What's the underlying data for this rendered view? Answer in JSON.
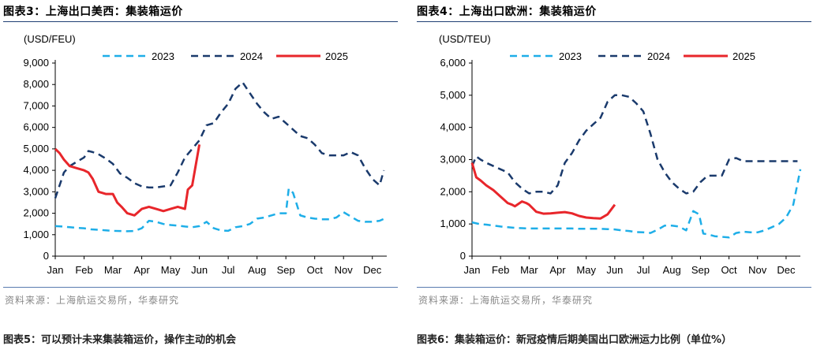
{
  "legend_labels": [
    "2023",
    "2024",
    "2025"
  ],
  "colors": {
    "y2023": "#1eaee8",
    "y2024": "#1a3a6c",
    "y2025": "#e8262b",
    "rule": "#1f3f73"
  },
  "panels": [
    {
      "title": "图表3：上海出口美西：集装箱运价",
      "source": "资料来源：上海航运交易所，华泰研究",
      "next_title": "图表5：可以预计未来集装箱运价，操作主动的机会",
      "chart_data": {
        "type": "line",
        "unit_label": "(USD/FEU)",
        "title": "上海出口美西：集装箱运价",
        "categories": [
          "Jan",
          "Feb",
          "Mar",
          "Apr",
          "May",
          "Jun",
          "Jul",
          "Aug",
          "Sep",
          "Oct",
          "Nov",
          "Dec"
        ],
        "ylim": [
          0,
          9000
        ],
        "yticks": [
          0,
          1000,
          2000,
          3000,
          4000,
          5000,
          6000,
          7000,
          8000,
          9000
        ],
        "ytick_labels": [
          "0",
          "1,000",
          "2,000",
          "3,000",
          "4,000",
          "5,000",
          "6,000",
          "7,000",
          "8,000",
          "9,000"
        ],
        "xlim": [
          0,
          11.5
        ],
        "series": [
          {
            "name": "2023",
            "x": [
              0,
              0.25,
              0.5,
              0.75,
              1,
              1.25,
              1.5,
              1.75,
              2,
              2.25,
              2.5,
              2.75,
              3,
              3.25,
              3.5,
              3.75,
              4,
              4.25,
              4.5,
              4.75,
              5,
              5.25,
              5.5,
              5.75,
              6,
              6.25,
              6.5,
              6.75,
              7,
              7.25,
              7.5,
              7.75,
              8,
              8.1,
              8.25,
              8.5,
              8.75,
              9,
              9.25,
              9.5,
              9.75,
              10,
              10.25,
              10.5,
              10.75,
              11,
              11.25,
              11.5
            ],
            "values": [
              1400,
              1380,
              1350,
              1320,
              1300,
              1250,
              1230,
              1200,
              1180,
              1170,
              1160,
              1170,
              1300,
              1650,
              1600,
              1500,
              1450,
              1420,
              1380,
              1350,
              1400,
              1600,
              1300,
              1200,
              1180,
              1350,
              1400,
              1500,
              1750,
              1800,
              1900,
              2000,
              2000,
              3150,
              2950,
              1900,
              1800,
              1750,
              1720,
              1720,
              1800,
              2050,
              1850,
              1650,
              1600,
              1600,
              1650,
              1800
            ]
          },
          {
            "name": "2024",
            "x": [
              0,
              0.15,
              0.3,
              0.5,
              0.75,
              1,
              1.15,
              1.3,
              1.5,
              1.75,
              2,
              2.25,
              2.5,
              2.75,
              3,
              3.25,
              3.5,
              3.75,
              4,
              4.25,
              4.5,
              4.75,
              5,
              5.25,
              5.5,
              5.75,
              6,
              6.25,
              6.5,
              6.75,
              7,
              7.25,
              7.5,
              7.75,
              8,
              8.25,
              8.5,
              8.75,
              9,
              9.25,
              9.5,
              9.75,
              10,
              10.25,
              10.5,
              10.75,
              11,
              11.25,
              11.4
            ],
            "values": [
              2700,
              3300,
              3900,
              4200,
              4400,
              4600,
              4900,
              4850,
              4750,
              4550,
              4300,
              3850,
              3650,
              3400,
              3250,
              3200,
              3200,
              3250,
              3300,
              3900,
              4600,
              5000,
              5400,
              6100,
              6200,
              6700,
              7100,
              7800,
              8100,
              7600,
              7100,
              6700,
              6400,
              6500,
              6200,
              5900,
              5600,
              5500,
              5200,
              4800,
              4700,
              4700,
              4700,
              4850,
              4700,
              4100,
              3600,
              3300,
              4000
            ]
          },
          {
            "name": "2025",
            "x": [
              0,
              0.15,
              0.3,
              0.5,
              0.75,
              1,
              1.15,
              1.3,
              1.5,
              1.75,
              2,
              2.15,
              2.3,
              2.5,
              2.75,
              3,
              3.25,
              3.5,
              3.75,
              4,
              4.25,
              4.5,
              4.6,
              4.75,
              5
            ],
            "values": [
              5000,
              4800,
              4500,
              4200,
              4100,
              4000,
              3900,
              3600,
              3000,
              2900,
              2900,
              2500,
              2300,
              2000,
              1900,
              2200,
              2300,
              2200,
              2100,
              2200,
              2300,
              2200,
              3100,
              3300,
              5200
            ]
          }
        ]
      }
    },
    {
      "title": "图表4：上海出口欧洲：集装箱运价",
      "source": "资料来源：上海航运交易所，华泰研究",
      "next_title": "图表6：集装箱运价：新冠疫情后期美国出口欧洲运力比例（单位%）",
      "chart_data": {
        "type": "line",
        "unit_label": "(USD/TEU)",
        "title": "上海出口欧洲：集装箱运价",
        "categories": [
          "Jan",
          "Feb",
          "Mar",
          "Apr",
          "May",
          "Jun",
          "Jul",
          "Aug",
          "Sep",
          "Oct",
          "Nov",
          "Dec"
        ],
        "ylim": [
          0,
          6000
        ],
        "yticks": [
          0,
          1000,
          2000,
          3000,
          4000,
          5000,
          6000
        ],
        "ytick_labels": [
          "0",
          "1,000",
          "2,000",
          "3,000",
          "4,000",
          "5,000",
          "6,000"
        ],
        "xlim": [
          0,
          11.5
        ],
        "series": [
          {
            "name": "2023",
            "x": [
              0,
              0.25,
              0.5,
              0.75,
              1,
              1.25,
              1.5,
              1.75,
              2,
              2.25,
              2.5,
              2.75,
              3,
              3.25,
              3.5,
              3.75,
              4,
              4.25,
              4.5,
              4.75,
              5,
              5.25,
              5.5,
              5.75,
              6,
              6.25,
              6.5,
              6.75,
              7,
              7.25,
              7.5,
              7.75,
              7.95,
              8.1,
              8.25,
              8.5,
              8.75,
              9,
              9.25,
              9.5,
              9.75,
              10,
              10.25,
              10.5,
              10.75,
              11,
              11.25,
              11.5
            ],
            "values": [
              1050,
              1000,
              980,
              950,
              920,
              900,
              880,
              870,
              860,
              860,
              860,
              860,
              860,
              860,
              860,
              850,
              850,
              850,
              850,
              840,
              830,
              800,
              780,
              750,
              740,
              720,
              820,
              950,
              950,
              920,
              800,
              1400,
              1300,
              700,
              680,
              620,
              600,
              580,
              720,
              760,
              740,
              740,
              800,
              900,
              1000,
              1200,
              1600,
              2700
            ]
          },
          {
            "name": "2024",
            "x": [
              0,
              0.15,
              0.3,
              0.5,
              0.75,
              1,
              1.25,
              1.5,
              1.75,
              2,
              2.25,
              2.5,
              2.75,
              3,
              3.25,
              3.5,
              3.75,
              4,
              4.25,
              4.5,
              4.75,
              5,
              5.25,
              5.5,
              5.75,
              6,
              6.25,
              6.5,
              6.75,
              7,
              7.25,
              7.5,
              7.75,
              8,
              8.25,
              8.5,
              8.75,
              9,
              9.25,
              9.5,
              9.75,
              10,
              10.25,
              10.5,
              10.75,
              11,
              11.25,
              11.4
            ],
            "values": [
              2800,
              3100,
              3000,
              2900,
              2800,
              2700,
              2600,
              2300,
              2100,
              1950,
              2000,
              2000,
              1950,
              2200,
              2900,
              3200,
              3600,
              3900,
              4100,
              4300,
              4800,
              5000,
              5000,
              4950,
              4750,
              4500,
              3800,
              3000,
              2600,
              2300,
              2100,
              1950,
              2000,
              2300,
              2500,
              2500,
              2500,
              3000,
              3050,
              2950,
              2950,
              2950,
              2950,
              2950,
              2950,
              2950,
              2950,
              2950
            ]
          },
          {
            "name": "2025",
            "x": [
              0,
              0.15,
              0.3,
              0.5,
              0.75,
              1,
              1.25,
              1.4,
              1.5,
              1.75,
              1.9,
              2,
              2.25,
              2.5,
              2.75,
              3,
              3.25,
              3.5,
              3.75,
              4,
              4.25,
              4.5,
              4.75,
              5
            ],
            "values": [
              2900,
              2450,
              2350,
              2200,
              2050,
              1850,
              1650,
              1600,
              1550,
              1700,
              1650,
              1600,
              1380,
              1320,
              1330,
              1350,
              1370,
              1330,
              1250,
              1200,
              1180,
              1170,
              1300,
              1600
            ]
          }
        ]
      }
    }
  ]
}
